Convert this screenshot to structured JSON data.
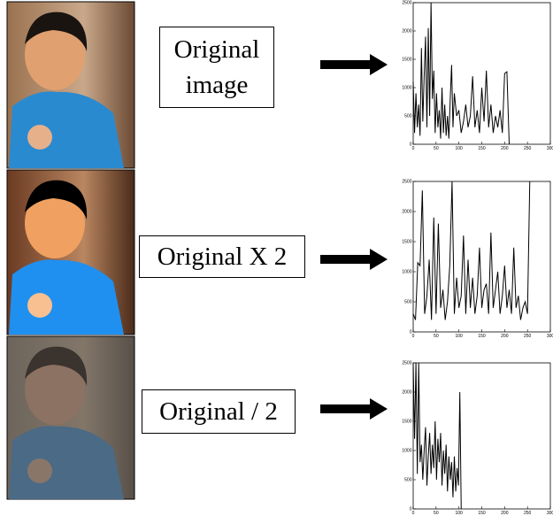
{
  "labels": [
    "Original image",
    "Original X 2",
    "Original / 2"
  ],
  "chart_data": [
    {
      "type": "line",
      "color": "#000000",
      "x": [
        0,
        3,
        6,
        9,
        12,
        15,
        18,
        21,
        24,
        27,
        30,
        33,
        36,
        39,
        42,
        45,
        48,
        51,
        54,
        57,
        60,
        63,
        66,
        69,
        72,
        75,
        78,
        81,
        84,
        87,
        90,
        95,
        100,
        105,
        110,
        115,
        120,
        125,
        130,
        135,
        140,
        145,
        150,
        155,
        160,
        165,
        170,
        175,
        180,
        185,
        190,
        195,
        200,
        205,
        210
      ],
      "values": [
        1100,
        200,
        900,
        300,
        700,
        150,
        1700,
        400,
        1200,
        1900,
        300,
        2050,
        500,
        2500,
        800,
        1300,
        200,
        900,
        300,
        600,
        100,
        1000,
        200,
        700,
        150,
        500,
        100,
        800,
        1400,
        300,
        900,
        500,
        600,
        200,
        400,
        700,
        300,
        500,
        1200,
        300,
        600,
        200,
        1000,
        400,
        1300,
        300,
        700,
        200,
        500,
        300,
        600,
        200,
        1250,
        1280,
        0
      ],
      "xlim": [
        0,
        300
      ],
      "xticks": [
        0,
        50,
        100,
        150,
        200,
        250,
        300
      ],
      "ylim": [
        0,
        2500
      ],
      "yticks": [
        0,
        500,
        1000,
        1500,
        2000,
        2500
      ]
    },
    {
      "type": "line",
      "color": "#000000",
      "x": [
        0,
        5,
        10,
        15,
        20,
        25,
        30,
        35,
        40,
        45,
        50,
        55,
        60,
        65,
        70,
        75,
        80,
        85,
        90,
        95,
        100,
        105,
        110,
        115,
        120,
        125,
        130,
        135,
        140,
        145,
        150,
        155,
        160,
        165,
        170,
        175,
        180,
        185,
        190,
        195,
        200,
        205,
        210,
        215,
        220,
        225,
        230,
        235,
        240,
        245,
        250,
        255
      ],
      "values": [
        300,
        200,
        1150,
        1100,
        2350,
        300,
        600,
        1200,
        200,
        1900,
        300,
        1800,
        400,
        700,
        200,
        500,
        1100,
        2500,
        300,
        900,
        400,
        600,
        1600,
        300,
        1200,
        400,
        900,
        300,
        600,
        1400,
        400,
        700,
        800,
        300,
        1650,
        400,
        700,
        1000,
        300,
        600,
        1100,
        400,
        700,
        300,
        1400,
        400,
        600,
        200,
        400,
        500,
        300,
        2500
      ],
      "xlim": [
        0,
        300
      ],
      "xticks": [
        0,
        50,
        100,
        150,
        200,
        250,
        300
      ],
      "ylim": [
        0,
        2500
      ],
      "yticks": [
        0,
        500,
        1000,
        1500,
        2000,
        2500
      ]
    },
    {
      "type": "line",
      "color": "#000000",
      "x": [
        0,
        3,
        6,
        9,
        12,
        15,
        18,
        21,
        24,
        27,
        30,
        33,
        36,
        39,
        42,
        45,
        48,
        51,
        54,
        57,
        60,
        63,
        66,
        69,
        72,
        75,
        78,
        81,
        84,
        87,
        90,
        93,
        96,
        99,
        102,
        105
      ],
      "values": [
        2500,
        1200,
        2500,
        600,
        2500,
        800,
        1100,
        500,
        1000,
        1400,
        400,
        900,
        1300,
        600,
        1100,
        700,
        1500,
        500,
        1200,
        800,
        1300,
        400,
        1000,
        600,
        1100,
        300,
        900,
        500,
        800,
        200,
        900,
        300,
        700,
        400,
        2000,
        0
      ],
      "xlim": [
        0,
        300
      ],
      "xticks": [
        0,
        50,
        100,
        150,
        200,
        250,
        300
      ],
      "ylim": [
        0,
        2500
      ],
      "yticks": [
        0,
        500,
        1000,
        1500,
        2000,
        2500
      ]
    }
  ]
}
